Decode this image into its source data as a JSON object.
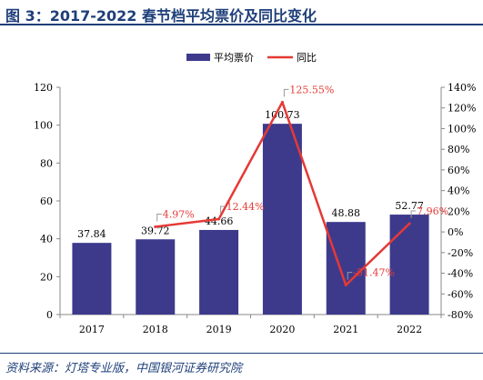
{
  "title": "图 3：2017-2022 春节档平均票价及同比变化",
  "source": "资料来源：灯塔专业版，中国银河证券研究院",
  "colors": {
    "bar": "#3d3a8c",
    "line": "#e53935",
    "title": "#1f3f7a"
  },
  "chart_data": {
    "type": "bar",
    "categories": [
      "2017",
      "2018",
      "2019",
      "2020",
      "2021",
      "2022"
    ],
    "series": [
      {
        "name": "平均票价",
        "type": "bar",
        "axis": "left",
        "values": [
          37.84,
          39.72,
          44.66,
          100.73,
          48.88,
          52.77
        ],
        "labels": [
          "37.84",
          "39.72",
          "44.66",
          "100.73",
          "48.88",
          "52.77"
        ]
      },
      {
        "name": "同比",
        "type": "line",
        "axis": "right",
        "values": [
          null,
          4.97,
          12.44,
          125.55,
          -51.47,
          7.96
        ],
        "labels": [
          "",
          "4.97%",
          "12.44%",
          "125.55%",
          "-51.47%",
          "7.96%"
        ]
      }
    ],
    "y_left": {
      "min": 0,
      "max": 120,
      "ticks": [
        "0",
        "20",
        "40",
        "60",
        "80",
        "100",
        "120"
      ]
    },
    "y_right": {
      "min": -80,
      "max": 140,
      "ticks": [
        "-80%",
        "-60%",
        "-40%",
        "-20%",
        "0%",
        "20%",
        "40%",
        "60%",
        "80%",
        "100%",
        "120%",
        "140%"
      ]
    },
    "legend_position": "top-center",
    "grid": false
  }
}
